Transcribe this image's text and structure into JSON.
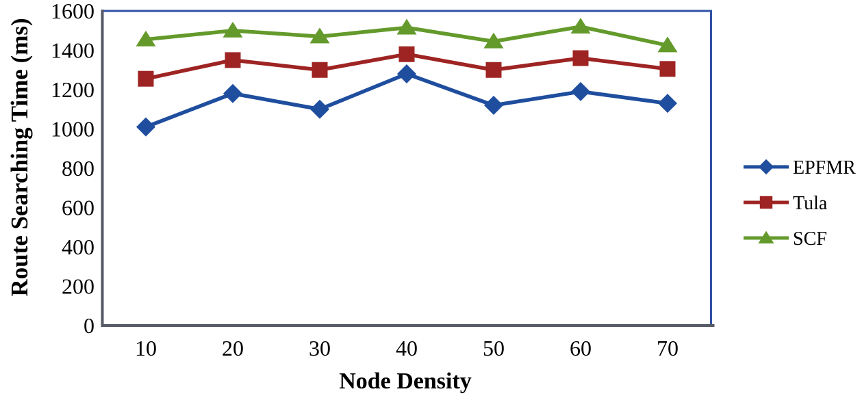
{
  "chart_data": {
    "type": "line",
    "title": "",
    "xlabel": "Node Density",
    "ylabel": "Route Searching Time (ms)",
    "x": [
      10,
      20,
      30,
      40,
      50,
      60,
      70
    ],
    "ylim": [
      0,
      1600
    ],
    "yticks": [
      0,
      200,
      400,
      600,
      800,
      1000,
      1200,
      1400,
      1600
    ],
    "grid": false,
    "legend_position": "right",
    "series": [
      {
        "name": "EPFMR",
        "marker": "diamond",
        "color": "#1F4E9E",
        "values": [
          1010,
          1180,
          1100,
          1280,
          1120,
          1190,
          1130
        ]
      },
      {
        "name": "Tula",
        "marker": "square",
        "color": "#9E2423",
        "values": [
          1255,
          1350,
          1300,
          1380,
          1300,
          1360,
          1305
        ]
      },
      {
        "name": "SCF",
        "marker": "triangle",
        "color": "#649A2B",
        "values": [
          1455,
          1500,
          1470,
          1515,
          1445,
          1520,
          1425
        ]
      }
    ]
  },
  "frame": {
    "plot_border_color": "#2E52A5",
    "axis_color": "#555A66",
    "text_color": "#000000",
    "background_color": "#FFFFFF"
  }
}
